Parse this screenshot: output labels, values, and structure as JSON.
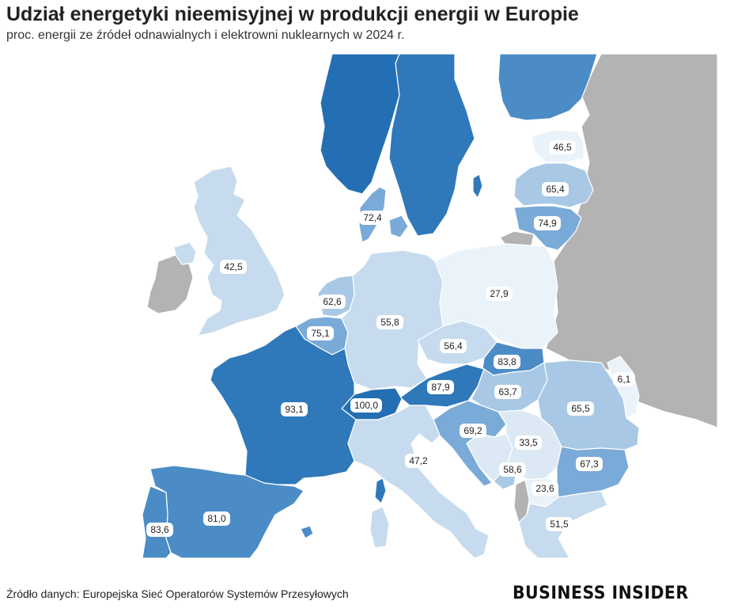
{
  "title": "Udział energetyki nieemisyjnej w produkcji energii w Europie",
  "subtitle": "proc. energii ze źródeł odnawialnych i elektrowni nuklearnych w 2024 r.",
  "source": "Źródło danych: Europejska Sieć Operatorów Systemów Przesyłowych",
  "logo": "BUSINESS INSIDER",
  "colors": {
    "no_data": "#b3b3b3",
    "very_light": "#eaf2fa",
    "light": "#c6dbee",
    "light_mid": "#a8c8e6",
    "mid": "#7aaad8",
    "mid_dark": "#4b8cc6",
    "dark": "#2f78ba",
    "darkest": "#246fb3"
  },
  "regions": {
    "norway": "",
    "sweden": "",
    "finland": "",
    "estonia": "46,5",
    "latvia": "65,4",
    "lithuania": "74,9",
    "denmark": "72,4",
    "uk": "42,5",
    "netherlands": "62,6",
    "belgium": "75,1",
    "germany": "55,8",
    "poland": "27,9",
    "czechia": "56,4",
    "slovakia": "83,8",
    "austria": "87,9",
    "hungary": "63,7",
    "moldova": "6,1",
    "romania": "65,5",
    "france": "93,1",
    "switzerland": "100,0",
    "slovenia_croatia": "69,2",
    "serbia": "33,5",
    "bulgaria": "67,3",
    "bosnia": "58,6",
    "north_macedonia": "23,6",
    "italy": "47,2",
    "greece": "51,5",
    "spain": "81,0",
    "portugal": "83,6"
  }
}
